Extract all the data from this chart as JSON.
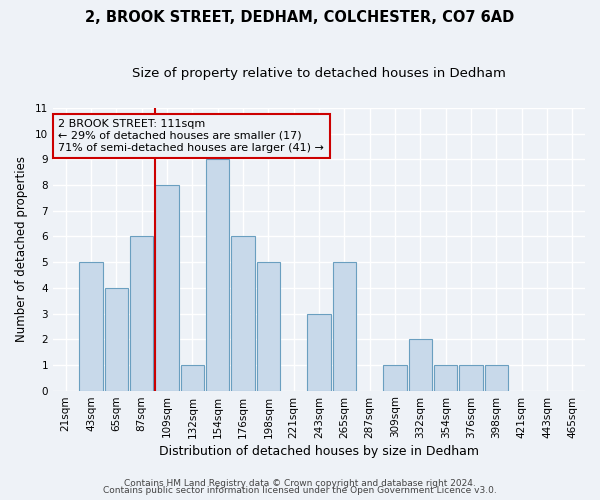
{
  "title1": "2, BROOK STREET, DEDHAM, COLCHESTER, CO7 6AD",
  "title2": "Size of property relative to detached houses in Dedham",
  "xlabel": "Distribution of detached houses by size in Dedham",
  "ylabel": "Number of detached properties",
  "bin_labels": [
    "21sqm",
    "43sqm",
    "65sqm",
    "87sqm",
    "109sqm",
    "132sqm",
    "154sqm",
    "176sqm",
    "198sqm",
    "221sqm",
    "243sqm",
    "265sqm",
    "287sqm",
    "309sqm",
    "332sqm",
    "354sqm",
    "376sqm",
    "398sqm",
    "421sqm",
    "443sqm",
    "465sqm"
  ],
  "bin_edges": [
    21,
    43,
    65,
    87,
    109,
    132,
    154,
    176,
    198,
    221,
    243,
    265,
    287,
    309,
    332,
    354,
    376,
    398,
    421,
    443,
    465
  ],
  "counts": [
    0,
    5,
    4,
    6,
    8,
    1,
    9,
    6,
    5,
    0,
    3,
    5,
    0,
    1,
    2,
    1,
    1,
    1,
    0,
    0,
    0
  ],
  "bar_facecolor": "#c8d9ea",
  "bar_edgecolor": "#6a9fc0",
  "ylim_max": 11,
  "yticks": [
    0,
    1,
    2,
    3,
    4,
    5,
    6,
    7,
    8,
    9,
    10,
    11
  ],
  "property_line_x": 109,
  "property_line_color": "#cc0000",
  "annotation_title": "2 BROOK STREET: 111sqm",
  "annotation_line1": "← 29% of detached houses are smaller (17)",
  "annotation_line2": "71% of semi-detached houses are larger (41) →",
  "annotation_box_edgecolor": "#cc0000",
  "footnote1": "Contains HM Land Registry data © Crown copyright and database right 2024.",
  "footnote2": "Contains public sector information licensed under the Open Government Licence v3.0.",
  "bg_color": "#eef2f7",
  "grid_color": "#ffffff",
  "title1_fontsize": 10.5,
  "title2_fontsize": 9.5,
  "xlabel_fontsize": 9,
  "ylabel_fontsize": 8.5,
  "tick_fontsize": 7.5,
  "annotation_fontsize": 8,
  "footnote_fontsize": 6.5
}
